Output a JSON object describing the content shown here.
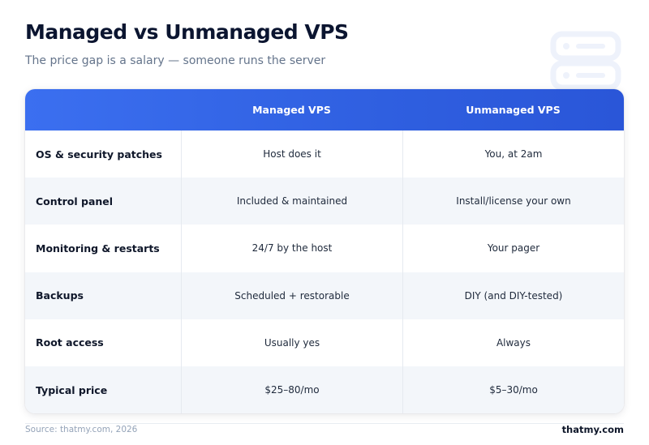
{
  "header": {
    "title": "Managed vs Unmanaged VPS",
    "subtitle": "The price gap is a salary — someone runs the server"
  },
  "table": {
    "columns": [
      "",
      "Managed VPS",
      "Unmanaged VPS"
    ],
    "rows": [
      {
        "label": "OS & security patches",
        "managed": "Host does it",
        "unmanaged": "You, at 2am"
      },
      {
        "label": "Control panel",
        "managed": "Included & maintained",
        "unmanaged": "Install/license your own"
      },
      {
        "label": "Monitoring & restarts",
        "managed": "24/7 by the host",
        "unmanaged": "Your pager"
      },
      {
        "label": "Backups",
        "managed": "Scheduled + restorable",
        "unmanaged": "DIY (and DIY-tested)"
      },
      {
        "label": "Root access",
        "managed": "Usually yes",
        "unmanaged": "Always"
      },
      {
        "label": "Typical price",
        "managed": "$25–80/mo",
        "unmanaged": "$5–30/mo"
      }
    ]
  },
  "footer": {
    "source": "Source: thatmy.com, 2026",
    "brand": "thatmy.com"
  },
  "icons": {
    "background": "server-icon"
  },
  "colors": {
    "header_start": "#3b6ff0",
    "header_end": "#2a56d8",
    "row_alt": "#f3f6fa",
    "title": "#0b1530"
  }
}
